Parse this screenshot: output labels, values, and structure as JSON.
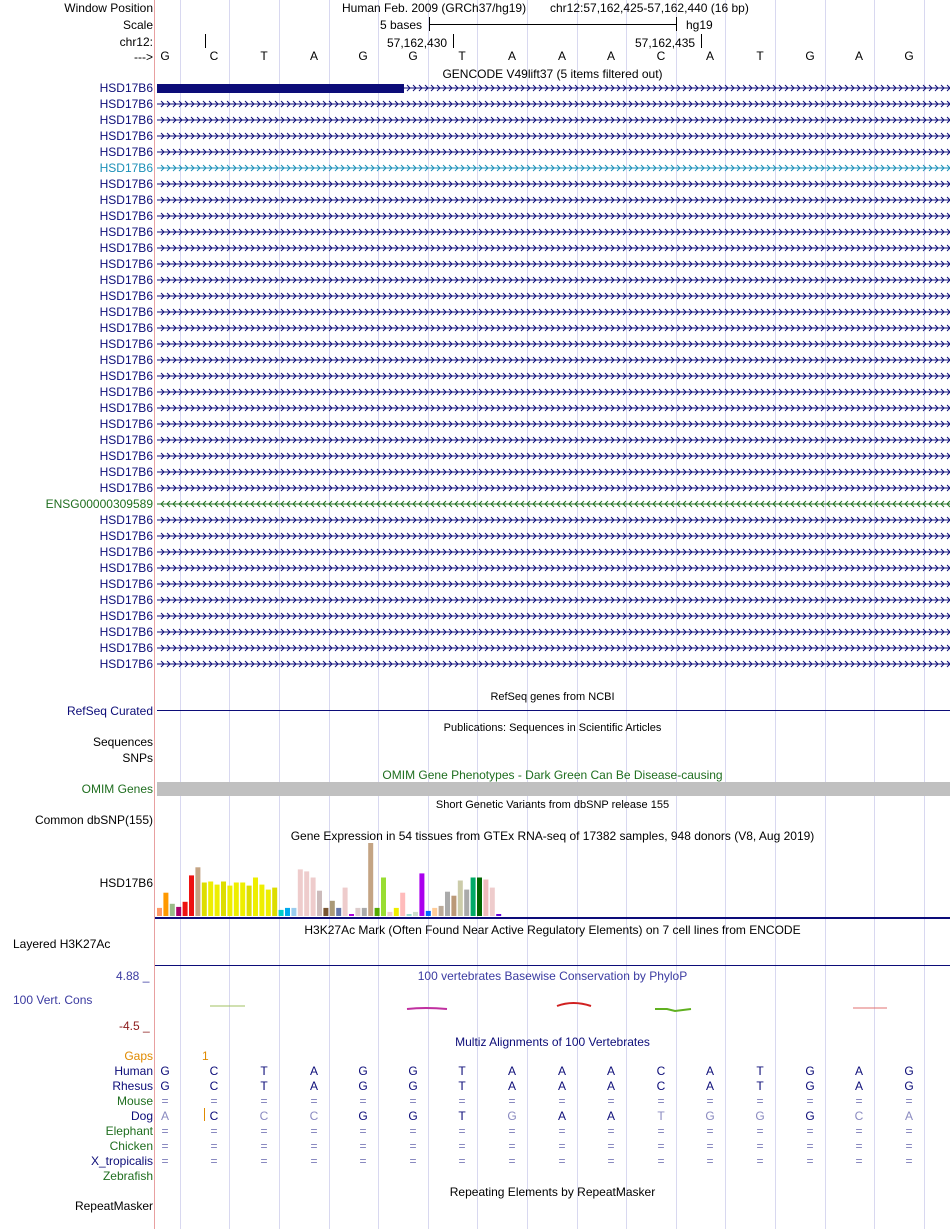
{
  "header": {
    "window_position_label": "Window Position",
    "assembly": "Human Feb. 2009 (GRCh37/hg19)",
    "position": "chr12:57,162,425-57,162,440 (16 bp)",
    "scale_label": "Scale",
    "scale_text": "5 bases",
    "db": "hg19",
    "chrom_label": "chr12:",
    "coord1": "57,162,430",
    "coord2": "57,162,435",
    "strand_label": "--->"
  },
  "sequence": [
    "G",
    "C",
    "T",
    "A",
    "G",
    "G",
    "T",
    "A",
    "A",
    "A",
    "C",
    "A",
    "T",
    "G",
    "A",
    "G"
  ],
  "gencode": {
    "title": "GENCODE V49lift37 (5 items filtered out)",
    "rows": [
      {
        "label": "HSD17B6",
        "color": "#0c0c78",
        "dir": "right",
        "thick": true
      },
      {
        "label": "HSD17B6",
        "color": "#0c0c78",
        "dir": "right"
      },
      {
        "label": "HSD17B6",
        "color": "#0c0c78",
        "dir": "right"
      },
      {
        "label": "HSD17B6",
        "color": "#0c0c78",
        "dir": "right"
      },
      {
        "label": "HSD17B6",
        "color": "#0c0c78",
        "dir": "right"
      },
      {
        "label": "HSD17B6",
        "color": "#1a8fb8",
        "dir": "right"
      },
      {
        "label": "HSD17B6",
        "color": "#0c0c78",
        "dir": "right"
      },
      {
        "label": "HSD17B6",
        "color": "#0c0c78",
        "dir": "right"
      },
      {
        "label": "HSD17B6",
        "color": "#0c0c78",
        "dir": "right"
      },
      {
        "label": "HSD17B6",
        "color": "#0c0c78",
        "dir": "right"
      },
      {
        "label": "HSD17B6",
        "color": "#0c0c78",
        "dir": "right"
      },
      {
        "label": "HSD17B6",
        "color": "#0c0c78",
        "dir": "right"
      },
      {
        "label": "HSD17B6",
        "color": "#0c0c78",
        "dir": "right"
      },
      {
        "label": "HSD17B6",
        "color": "#0c0c78",
        "dir": "right"
      },
      {
        "label": "HSD17B6",
        "color": "#0c0c78",
        "dir": "right"
      },
      {
        "label": "HSD17B6",
        "color": "#0c0c78",
        "dir": "right"
      },
      {
        "label": "HSD17B6",
        "color": "#0c0c78",
        "dir": "right"
      },
      {
        "label": "HSD17B6",
        "color": "#0c0c78",
        "dir": "right"
      },
      {
        "label": "HSD17B6",
        "color": "#0c0c78",
        "dir": "right"
      },
      {
        "label": "HSD17B6",
        "color": "#0c0c78",
        "dir": "right"
      },
      {
        "label": "HSD17B6",
        "color": "#0c0c78",
        "dir": "right"
      },
      {
        "label": "HSD17B6",
        "color": "#0c0c78",
        "dir": "right"
      },
      {
        "label": "HSD17B6",
        "color": "#0c0c78",
        "dir": "right"
      },
      {
        "label": "HSD17B6",
        "color": "#0c0c78",
        "dir": "right"
      },
      {
        "label": "HSD17B6",
        "color": "#0c0c78",
        "dir": "right"
      },
      {
        "label": "HSD17B6",
        "color": "#0c0c78",
        "dir": "right"
      },
      {
        "label": "ENSG00000309589",
        "color": "#1f6e1f",
        "dir": "left"
      },
      {
        "label": "HSD17B6",
        "color": "#0c0c78",
        "dir": "right"
      },
      {
        "label": "HSD17B6",
        "color": "#0c0c78",
        "dir": "right"
      },
      {
        "label": "HSD17B6",
        "color": "#0c0c78",
        "dir": "right"
      },
      {
        "label": "HSD17B6",
        "color": "#0c0c78",
        "dir": "right"
      },
      {
        "label": "HSD17B6",
        "color": "#0c0c78",
        "dir": "right"
      },
      {
        "label": "HSD17B6",
        "color": "#0c0c78",
        "dir": "right"
      },
      {
        "label": "HSD17B6",
        "color": "#0c0c78",
        "dir": "right"
      },
      {
        "label": "HSD17B6",
        "color": "#0c0c78",
        "dir": "right"
      },
      {
        "label": "HSD17B6",
        "color": "#0c0c78",
        "dir": "right"
      },
      {
        "label": "HSD17B6",
        "color": "#0c0c78",
        "dir": "right"
      }
    ]
  },
  "refseq": {
    "title": "RefSeq genes from NCBI",
    "label": "RefSeq Curated"
  },
  "publications": {
    "title": "Publications: Sequences in Scientific Articles",
    "label1": "Sequences",
    "label2": "SNPs"
  },
  "omim": {
    "title": "OMIM Gene Phenotypes - Dark Green Can Be Disease-causing",
    "label": "OMIM Genes"
  },
  "dbsnp": {
    "title": "Short Genetic Variants from dbSNP release 155",
    "label": "Common dbSNP(155)"
  },
  "gtex": {
    "title": "Gene Expression in 54 tissues from GTEx RNA-seq of 17382 samples, 948 donors (V8, Aug 2019)",
    "label": "HSD17B6"
  },
  "chart_data": {
    "type": "bar",
    "title": "Gene Expression in 54 tissues from GTEx RNA-seq",
    "ylim": [
      0,
      72
    ],
    "values": [
      8,
      23,
      12,
      9,
      14,
      40,
      48,
      33,
      34,
      31,
      34,
      30,
      33,
      33,
      30,
      38,
      31,
      26,
      28,
      6,
      8,
      8,
      46,
      44,
      38,
      25,
      8,
      15,
      8,
      28,
      2,
      8,
      8,
      72,
      8,
      38,
      4,
      8,
      23,
      2,
      4,
      42,
      5,
      8,
      10,
      24,
      20,
      35,
      26,
      38,
      38,
      36,
      28,
      2
    ],
    "colors": [
      "#ff9966",
      "#ff9900",
      "#99bb88",
      "#aa0066",
      "#ee1111",
      "#ee1111",
      "#c4a484",
      "#dddd00",
      "#eeee00",
      "#eeee00",
      "#dddd00",
      "#eeee00",
      "#eeee00",
      "#eeee00",
      "#dddd00",
      "#eeee00",
      "#eeee00",
      "#eeee00",
      "#dddd00",
      "#00cccc",
      "#00aaee",
      "#99ccee",
      "#eecccc",
      "#eecccc",
      "#eecccc",
      "#ccbbbb",
      "#775533",
      "#aa9977",
      "#6677aa",
      "#eecccc",
      "#aa00dd",
      "#ddcccc",
      "#aaaaaa",
      "#c4a484",
      "#55aa00",
      "#99dd33",
      "#eecccc",
      "#eeee00",
      "#ffbbbb",
      "#99ddcc",
      "#ccddcc",
      "#aa00ee",
      "#0066ff",
      "#ffcc99",
      "#bbaa99",
      "#aaaaaa",
      "#bb9977",
      "#ccccaa",
      "#aaaaaa",
      "#00aa66",
      "#006600",
      "#eebbbb",
      "#eecccc",
      "#6600dd"
    ]
  },
  "h3k27ac": {
    "title": "H3K27Ac Mark (Often Found Near Active Regulatory Elements) on 7 cell lines from ENCODE",
    "label": "Layered H3K27Ac"
  },
  "phylop": {
    "title": "100 vertebrates Basewise Conservation by PhyloP",
    "label": "100 Vert. Cons",
    "ymax": "4.88 _",
    "ymin": "-4.5 _"
  },
  "multiz": {
    "title": "Multiz Alignments of 100 Vertebrates",
    "gaps_label": "Gaps",
    "gaps_value": "1",
    "species": [
      {
        "label": "Human",
        "color": "#0c0c78",
        "bases": [
          "G",
          "C",
          "T",
          "A",
          "G",
          "G",
          "T",
          "A",
          "A",
          "A",
          "C",
          "A",
          "T",
          "G",
          "A",
          "G"
        ]
      },
      {
        "label": "Rhesus",
        "color": "#0c0c78",
        "bases": [
          "G",
          "C",
          "T",
          "A",
          "G",
          "G",
          "T",
          "A",
          "A",
          "A",
          "C",
          "A",
          "T",
          "G",
          "A",
          "G"
        ]
      },
      {
        "label": "Mouse",
        "color": "#1f6e1f",
        "bases": [
          "=",
          "=",
          "=",
          "=",
          "=",
          "=",
          "=",
          "=",
          "=",
          "=",
          "=",
          "=",
          "=",
          "=",
          "=",
          "="
        ]
      },
      {
        "label": "Dog",
        "color": "#0c0c78",
        "bases": [
          "A",
          "C",
          "C",
          "C",
          "G",
          "G",
          "T",
          "G",
          "A",
          "A",
          "T",
          "G",
          "G",
          "G",
          "C",
          "A"
        ]
      },
      {
        "label": "Elephant",
        "color": "#1f6e1f",
        "bases": [
          "=",
          "=",
          "=",
          "=",
          "=",
          "=",
          "=",
          "=",
          "=",
          "=",
          "=",
          "=",
          "=",
          "=",
          "=",
          "="
        ]
      },
      {
        "label": "Chicken",
        "color": "#1f6e1f",
        "bases": [
          "=",
          "=",
          "=",
          "=",
          "=",
          "=",
          "=",
          "=",
          "=",
          "=",
          "=",
          "=",
          "=",
          "=",
          "=",
          "="
        ]
      },
      {
        "label": "X_tropicalis",
        "color": "#0c0c78",
        "bases": [
          "=",
          "=",
          "=",
          "=",
          "=",
          "=",
          "=",
          "=",
          "=",
          "=",
          "=",
          "=",
          "=",
          "=",
          "=",
          "="
        ]
      },
      {
        "label": "Zebrafish",
        "color": "#1f6e1f",
        "bases": []
      }
    ]
  },
  "repeatmasker": {
    "title": "Repeating Elements by RepeatMasker",
    "label": "RepeatMasker"
  }
}
